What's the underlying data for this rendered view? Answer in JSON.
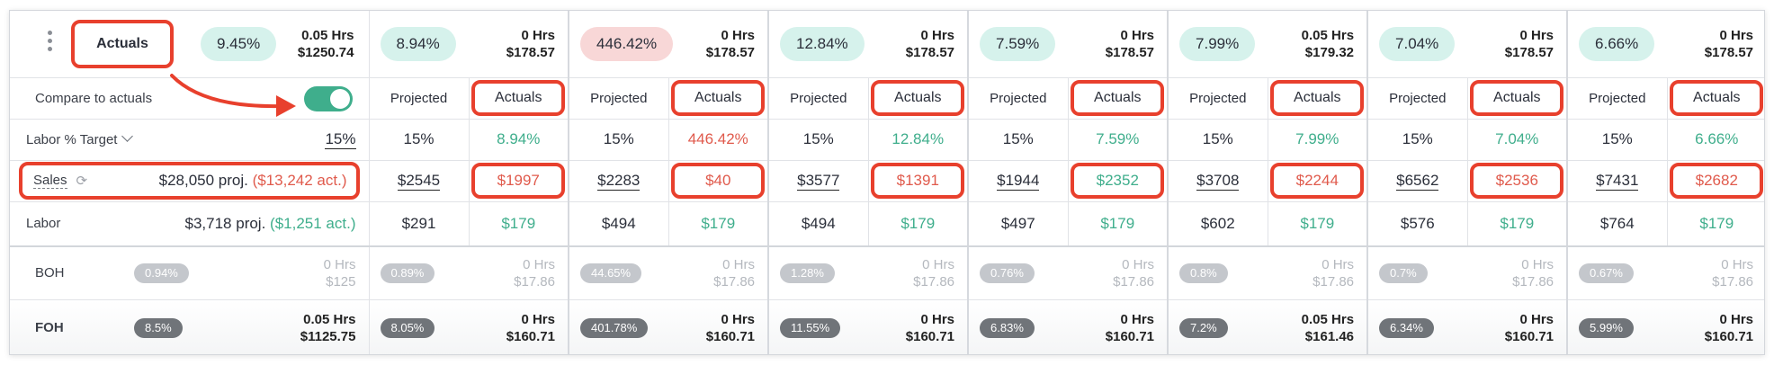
{
  "header": {
    "view_selector": "Actuals",
    "summary_pct": "9.45%",
    "summary_hrs": "0.05 Hrs",
    "summary_cost": "$1250.74"
  },
  "compare": {
    "label": "Compare to actuals",
    "enabled": true
  },
  "labor_target": {
    "label": "Labor % Target",
    "value": "15%"
  },
  "sales": {
    "label": "Sales",
    "summary_proj": "$28,050 proj.",
    "summary_act": "($13,242 act.)"
  },
  "labor": {
    "label": "Labor",
    "summary_proj": "$3,718 proj.",
    "summary_act": "($1,251 act.)"
  },
  "boh": {
    "label": "BOH",
    "pct": "0.94%",
    "hrs": "0 Hrs",
    "cost": "$125"
  },
  "foh": {
    "label": "FOH",
    "pct": "8.5%",
    "hrs": "0.05 Hrs",
    "cost": "$1125.75"
  },
  "days": [
    {
      "pct": "8.94%",
      "pct_tone": "green",
      "hrs": "0 Hrs",
      "cost": "$178.57",
      "projected_label": "Projected",
      "actuals_label": "Actuals",
      "target": "15%",
      "actual_pct": "8.94%",
      "actual_pct_tone": "green",
      "sales_proj": "$2545",
      "sales_act": "$1997",
      "sales_act_tone": "red",
      "labor_proj": "$291",
      "labor_act": "$179",
      "boh_pct": "0.89%",
      "boh_hrs": "0 Hrs",
      "boh_cost": "$17.86",
      "foh_pct": "8.05%",
      "foh_hrs": "0 Hrs",
      "foh_cost": "$160.71"
    },
    {
      "pct": "446.42%",
      "pct_tone": "red",
      "hrs": "0 Hrs",
      "cost": "$178.57",
      "projected_label": "Projected",
      "actuals_label": "Actuals",
      "target": "15%",
      "actual_pct": "446.42%",
      "actual_pct_tone": "red",
      "sales_proj": "$2283",
      "sales_act": "$40",
      "sales_act_tone": "red",
      "labor_proj": "$494",
      "labor_act": "$179",
      "boh_pct": "44.65%",
      "boh_hrs": "0 Hrs",
      "boh_cost": "$17.86",
      "foh_pct": "401.78%",
      "foh_hrs": "0 Hrs",
      "foh_cost": "$160.71"
    },
    {
      "pct": "12.84%",
      "pct_tone": "green",
      "hrs": "0 Hrs",
      "cost": "$178.57",
      "projected_label": "Projected",
      "actuals_label": "Actuals",
      "target": "15%",
      "actual_pct": "12.84%",
      "actual_pct_tone": "green",
      "sales_proj": "$3577",
      "sales_act": "$1391",
      "sales_act_tone": "red",
      "labor_proj": "$494",
      "labor_act": "$179",
      "boh_pct": "1.28%",
      "boh_hrs": "0 Hrs",
      "boh_cost": "$17.86",
      "foh_pct": "11.55%",
      "foh_hrs": "0 Hrs",
      "foh_cost": "$160.71"
    },
    {
      "pct": "7.59%",
      "pct_tone": "green",
      "hrs": "0 Hrs",
      "cost": "$178.57",
      "projected_label": "Projected",
      "actuals_label": "Actuals",
      "target": "15%",
      "actual_pct": "7.59%",
      "actual_pct_tone": "green",
      "sales_proj": "$1944",
      "sales_act": "$2352",
      "sales_act_tone": "green",
      "labor_proj": "$497",
      "labor_act": "$179",
      "boh_pct": "0.76%",
      "boh_hrs": "0 Hrs",
      "boh_cost": "$17.86",
      "foh_pct": "6.83%",
      "foh_hrs": "0 Hrs",
      "foh_cost": "$160.71"
    },
    {
      "pct": "7.99%",
      "pct_tone": "green",
      "hrs": "0.05 Hrs",
      "cost": "$179.32",
      "projected_label": "Projected",
      "actuals_label": "Actuals",
      "target": "15%",
      "actual_pct": "7.99%",
      "actual_pct_tone": "green",
      "sales_proj": "$3708",
      "sales_act": "$2244",
      "sales_act_tone": "red",
      "labor_proj": "$602",
      "labor_act": "$179",
      "boh_pct": "0.8%",
      "boh_hrs": "0 Hrs",
      "boh_cost": "$17.86",
      "foh_pct": "7.2%",
      "foh_hrs": "0.05 Hrs",
      "foh_cost": "$161.46"
    },
    {
      "pct": "7.04%",
      "pct_tone": "green",
      "hrs": "0 Hrs",
      "cost": "$178.57",
      "projected_label": "Projected",
      "actuals_label": "Actuals",
      "target": "15%",
      "actual_pct": "7.04%",
      "actual_pct_tone": "green",
      "sales_proj": "$6562",
      "sales_act": "$2536",
      "sales_act_tone": "red",
      "labor_proj": "$576",
      "labor_act": "$179",
      "boh_pct": "0.7%",
      "boh_hrs": "0 Hrs",
      "boh_cost": "$17.86",
      "foh_pct": "6.34%",
      "foh_hrs": "0 Hrs",
      "foh_cost": "$160.71"
    },
    {
      "pct": "6.66%",
      "pct_tone": "green",
      "hrs": "0 Hrs",
      "cost": "$178.57",
      "projected_label": "Projected",
      "actuals_label": "Actuals",
      "target": "15%",
      "actual_pct": "6.66%",
      "actual_pct_tone": "green",
      "sales_proj": "$7431",
      "sales_act": "$2682",
      "sales_act_tone": "red",
      "labor_proj": "$764",
      "labor_act": "$179",
      "boh_pct": "0.67%",
      "boh_hrs": "0 Hrs",
      "boh_cost": "$17.86",
      "foh_pct": "5.99%",
      "foh_hrs": "0 Hrs",
      "foh_cost": "$160.71"
    }
  ],
  "colors": {
    "accent_green": "#3fae8c",
    "alert_red": "#e05a4c",
    "annotation_red": "#e8402d"
  },
  "icons": {
    "drag_handle": "vertical-dots-icon",
    "dropdown": "chevron-down-icon",
    "sync": "sync-icon",
    "annotation": "curved-arrow-icon"
  }
}
